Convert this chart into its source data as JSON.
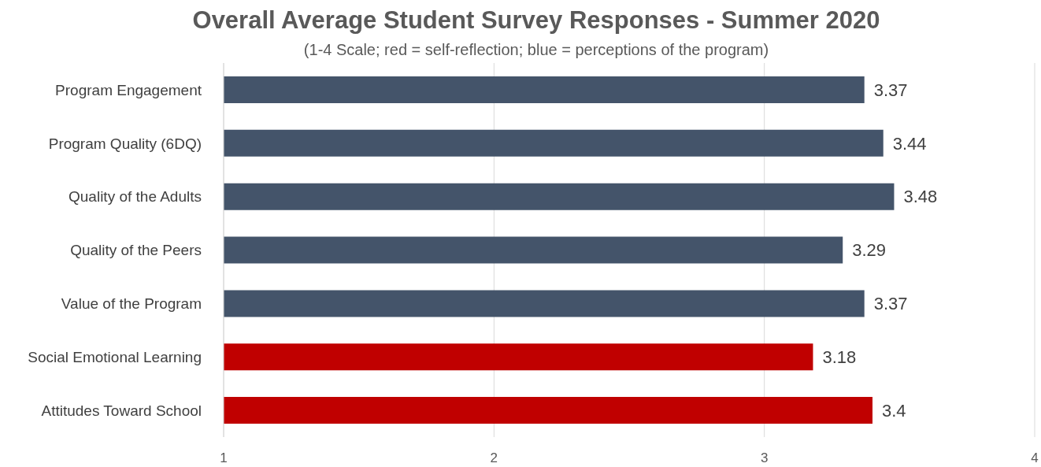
{
  "chart_data": {
    "type": "bar",
    "orientation": "horizontal",
    "title": "Overall Average Student Survey Responses - Summer 2020",
    "subtitle": "(1-4 Scale; red = self-reflection; blue = perceptions of the program)",
    "categories": [
      "Program Engagement",
      "Program Quality (6DQ)",
      "Quality of the Adults",
      "Quality of the Peers",
      "Value of the Program",
      "Social Emotional Learning",
      "Attitudes Toward School"
    ],
    "values": [
      3.37,
      3.44,
      3.48,
      3.29,
      3.37,
      3.18,
      3.4
    ],
    "colors": [
      "#44546a",
      "#44546a",
      "#44546a",
      "#44546a",
      "#44546a",
      "#c00000",
      "#c00000"
    ],
    "xlim": [
      1,
      4
    ],
    "xticks": [
      1,
      2,
      3,
      4
    ],
    "grid": "x",
    "data_labels": true
  }
}
